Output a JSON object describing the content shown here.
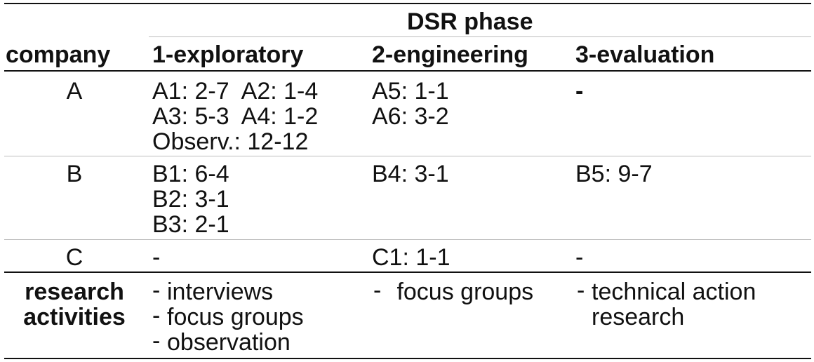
{
  "header": {
    "group_label": "DSR phase",
    "company_label": "company",
    "phases": [
      "1-exploratory",
      "2-engineering",
      "3-evaluation"
    ]
  },
  "rows": [
    {
      "company": "A",
      "exploratory": [
        "A1: 2-7  A2: 1-4",
        "A3: 5-3  A4: 1-2",
        "Observ.: 12-12"
      ],
      "engineering": [
        "A5: 1-1",
        "A6: 3-2"
      ],
      "evaluation": [
        "-"
      ]
    },
    {
      "company": "B",
      "exploratory": [
        "B1: 6-4",
        "B2: 3-1",
        "B3: 2-1"
      ],
      "engineering": [
        "B4: 3-1"
      ],
      "evaluation": [
        "B5: 9-7"
      ]
    },
    {
      "company": "C",
      "exploratory": [
        "-"
      ],
      "engineering": [
        "C1: 1-1"
      ],
      "evaluation": [
        "-"
      ]
    }
  ],
  "activities": {
    "label_line1": "research",
    "label_line2": "activities",
    "bullet": "-",
    "exploratory": [
      "interviews",
      "focus groups",
      "observation"
    ],
    "engineering": [
      " focus groups"
    ],
    "evaluation": [
      "technical action",
      "research"
    ]
  }
}
